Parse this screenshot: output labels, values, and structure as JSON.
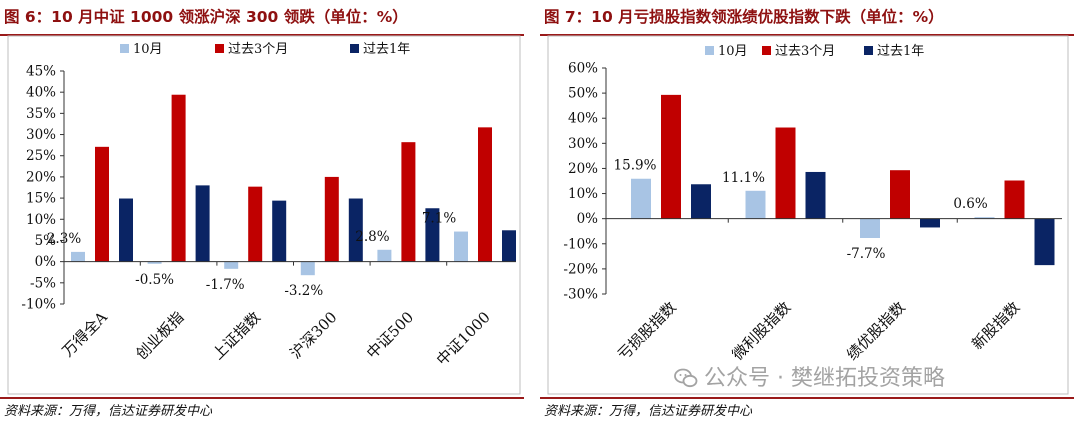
{
  "colors": {
    "series": [
      "#a8c4e4",
      "#c00000",
      "#0a2464"
    ],
    "accent": "#9a1a1a"
  },
  "figures": [
    {
      "title": "图 6：10 月中证 1000 领涨沪深 300 领跌（单位：%）",
      "source": "资料来源：万得，信达证券研发中心"
    },
    {
      "title": "图 7：10 月亏损股指数领涨绩优股指数下跌（单位：%）",
      "source": "资料来源：万得，信达证券研发中心"
    }
  ],
  "watermark": {
    "text": "公众号 · 樊继拓投资策略",
    "icon": "wechat-icon"
  },
  "chart_data": [
    {
      "type": "bar",
      "categories": [
        "万得全A",
        "创业板指",
        "上证指数",
        "沪深300",
        "中证500",
        "中证1000"
      ],
      "series": [
        {
          "name": "10月",
          "values": [
            2.3,
            -0.5,
            -1.7,
            -3.2,
            2.8,
            7.1
          ]
        },
        {
          "name": "过去3个月",
          "values": [
            27.1,
            39.4,
            17.7,
            20.0,
            28.2,
            31.7
          ]
        },
        {
          "name": "过去1年",
          "values": [
            14.9,
            18.0,
            14.4,
            14.9,
            12.6,
            7.4
          ]
        }
      ],
      "data_labels": [
        "2.3%",
        "-0.5%",
        "-1.7%",
        "-3.2%",
        "2.8%",
        "7.1%"
      ],
      "ylim": [
        -10,
        45
      ],
      "yticks": [
        "45%",
        "40%",
        "35%",
        "30%",
        "25%",
        "20%",
        "15%",
        "10%",
        "5%",
        "0%",
        "-5%",
        "-10%"
      ],
      "legend": "top"
    },
    {
      "type": "bar",
      "categories": [
        "亏损股指数",
        "微利股指数",
        "绩优股指数",
        "新股指数"
      ],
      "series": [
        {
          "name": "10月",
          "values": [
            15.9,
            11.1,
            -7.7,
            0.6
          ]
        },
        {
          "name": "过去3个月",
          "values": [
            49.3,
            36.3,
            19.3,
            15.2
          ]
        },
        {
          "name": "过去1年",
          "values": [
            13.7,
            18.6,
            -3.5,
            -18.5
          ]
        }
      ],
      "data_labels": [
        "15.9%",
        "11.1%",
        "-7.7%",
        "0.6%"
      ],
      "ylim": [
        -30,
        60
      ],
      "yticks": [
        "60%",
        "50%",
        "40%",
        "30%",
        "20%",
        "10%",
        "0%",
        "-10%",
        "-20%",
        "-30%"
      ],
      "legend": "top"
    }
  ]
}
